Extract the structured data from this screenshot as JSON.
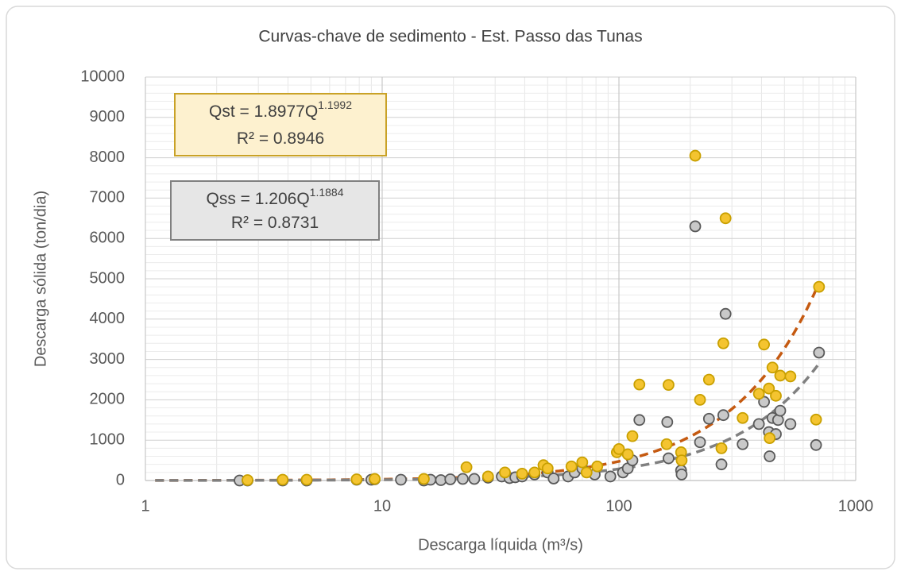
{
  "chart_data": {
    "type": "scatter",
    "title": "Curvas-chave de sedimento - Est. Passo das Tunas",
    "x_label": "Descarga líquida (m³/s)",
    "y_label": "Descarga sólida (ton/dia)",
    "xlim": [
      1,
      1000
    ],
    "xticks": [
      1,
      10,
      100,
      1000
    ],
    "x_log": true,
    "ylim": [
      0,
      10000
    ],
    "yticks": [
      0,
      1000,
      2000,
      3000,
      4000,
      5000,
      6000,
      7000,
      8000,
      9000,
      10000
    ],
    "grid": true,
    "minor_grid": true,
    "series": [
      {
        "name": "Qst",
        "color": "#f4c430",
        "edge": "#c9a000",
        "x": [
          2.7,
          3.8,
          4.8,
          7.8,
          9.3,
          15,
          22.7,
          28,
          33,
          39,
          44,
          48,
          50,
          63,
          70,
          73,
          81,
          98,
          100,
          109,
          114,
          122,
          159,
          162,
          183,
          184,
          210,
          220,
          240,
          271,
          276,
          282,
          333,
          390,
          410,
          430,
          433,
          445,
          460,
          480,
          530,
          680,
          700
        ],
        "values": [
          10,
          20,
          20,
          30,
          40,
          40,
          330,
          100,
          200,
          170,
          200,
          380,
          300,
          350,
          450,
          200,
          350,
          700,
          780,
          650,
          1100,
          2380,
          900,
          2370,
          700,
          500,
          8050,
          2000,
          2500,
          800,
          3400,
          6500,
          1550,
          2150,
          3370,
          2280,
          1050,
          2800,
          2100,
          2600,
          2580,
          1510,
          4800
        ],
        "trendline": {
          "color": "#c55a11",
          "xrange": [
            1.1,
            690
          ],
          "name_text": "Qst = ",
          "var_text": "Q",
          "coefficient": 1.8977,
          "exponent": 1.1992,
          "r2_text": "R² = ",
          "r2": 0.8946
        }
      },
      {
        "name": "Qss",
        "color": "#c9c9c9",
        "edge": "#595959",
        "x": [
          2.5,
          2.7,
          3.8,
          4.8,
          7.8,
          9.0,
          9.3,
          12,
          15,
          16,
          17.7,
          19.4,
          21.9,
          24.5,
          28,
          32,
          34.5,
          36.5,
          39,
          44,
          50,
          53,
          61,
          65,
          70,
          79,
          92,
          104,
          109,
          114,
          122,
          160,
          162,
          183,
          184,
          210,
          220,
          240,
          271,
          276,
          282,
          333,
          390,
          410,
          430,
          433,
          445,
          460,
          470,
          480,
          530,
          680,
          700
        ],
        "values": [
          0,
          0,
          0,
          0,
          20,
          20,
          30,
          20,
          0,
          20,
          10,
          30,
          40,
          40,
          70,
          100,
          60,
          80,
          100,
          150,
          200,
          50,
          100,
          200,
          300,
          150,
          100,
          200,
          300,
          500,
          1500,
          1450,
          550,
          250,
          150,
          6300,
          950,
          1530,
          400,
          1620,
          4130,
          900,
          1400,
          1950,
          1200,
          600,
          1550,
          1150,
          1500,
          1730,
          1400,
          880,
          3170
        ],
        "trendline": {
          "color": "#808080",
          "xrange": [
            1.1,
            690
          ],
          "name_text": "Qss = ",
          "var_text": "Q",
          "coefficient": 1.206,
          "exponent": 1.1884,
          "r2_text": "R² = ",
          "r2": 0.8731
        }
      }
    ]
  }
}
